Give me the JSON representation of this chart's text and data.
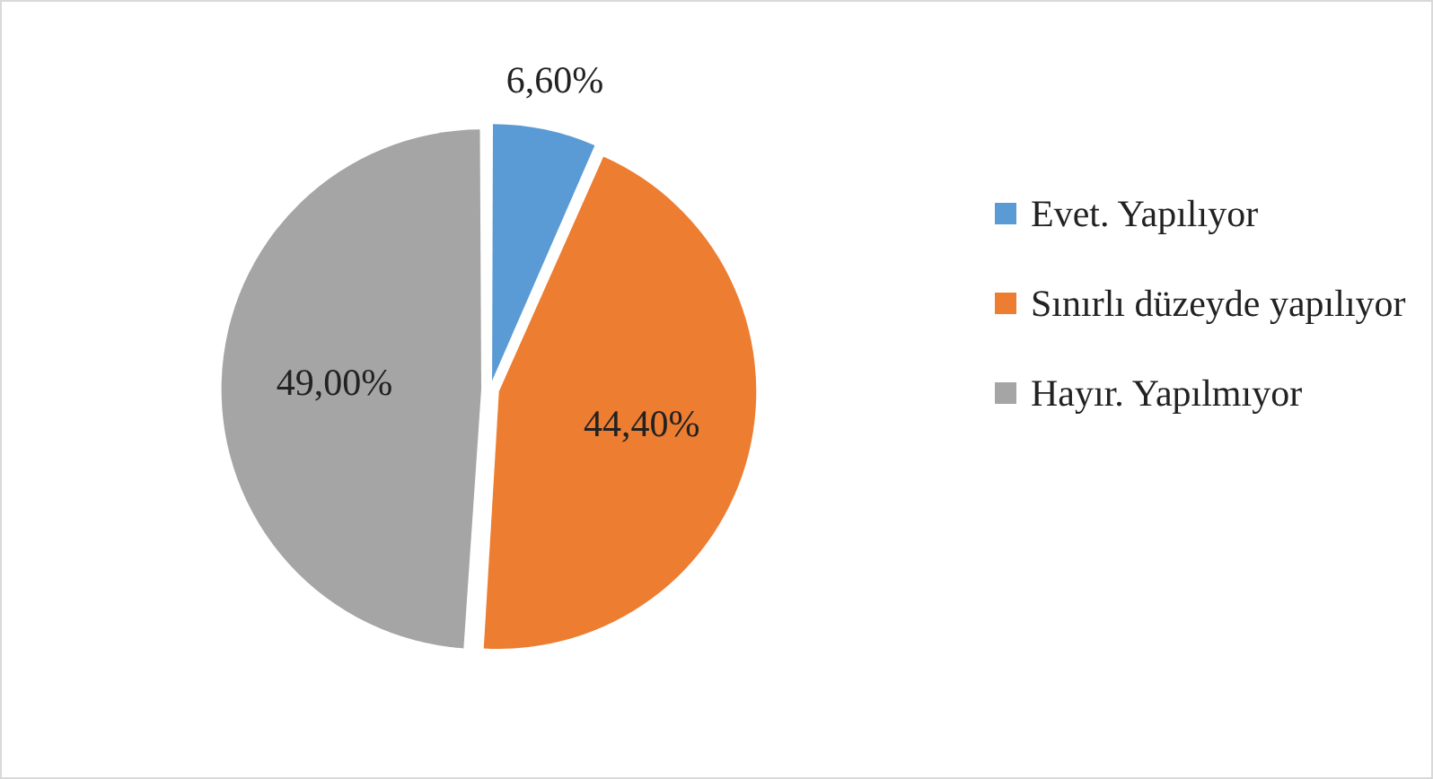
{
  "chart_data": {
    "type": "pie",
    "categories": [
      "Evet. Yapılıyor",
      "Sınırlı düzeyde yapılıyor",
      "Hayır. Yapılmıyor"
    ],
    "values": [
      6.6,
      44.4,
      49.0
    ],
    "colors": [
      "#5b9bd5",
      "#ed7d31",
      "#a5a5a5"
    ],
    "value_labels": [
      "6,60%",
      "44,40%",
      "49,00%"
    ],
    "legend": "right"
  }
}
